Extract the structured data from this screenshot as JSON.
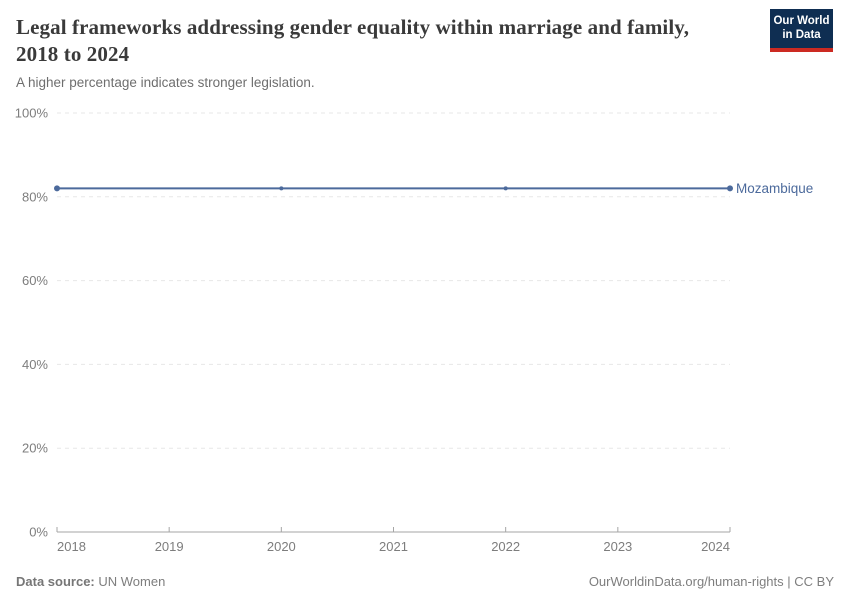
{
  "header": {
    "title": "Legal frameworks addressing gender equality within marriage and family, 2018 to 2024",
    "subtitle": "A higher percentage indicates stronger legislation.",
    "logo": {
      "line1": "Our World",
      "line2": "in Data",
      "bg_color": "#0f2e52",
      "accent_color": "#cc2a22"
    }
  },
  "chart_data": {
    "type": "line",
    "title": "Legal frameworks addressing gender equality within marriage and family, 2018 to 2024",
    "subtitle": "A higher percentage indicates stronger legislation.",
    "series": [
      {
        "name": "Mozambique",
        "color": "#4c6a9c",
        "x": [
          2018,
          2020,
          2022,
          2024
        ],
        "values": [
          82,
          82,
          82,
          82
        ]
      }
    ],
    "xlabel": "",
    "ylabel": "",
    "xlim": [
      2018,
      2024
    ],
    "ylim": [
      0,
      100
    ],
    "x_ticks": [
      2018,
      2019,
      2020,
      2021,
      2022,
      2023,
      2024
    ],
    "y_ticks": [
      0,
      20,
      40,
      60,
      80,
      100
    ],
    "y_tick_suffix": "%",
    "grid": "horizontal-dashed",
    "legend_position": "line-end-label",
    "colors": {
      "gridline": "#e7e7e7",
      "axis": "#a5a5a5",
      "tick_label": "#7d7d7d"
    }
  },
  "footer": {
    "source_label": "Data source:",
    "source_value": " UN Women",
    "link_text": "OurWorldinData.org/human-rights",
    "separator": " | ",
    "license": "CC BY"
  }
}
